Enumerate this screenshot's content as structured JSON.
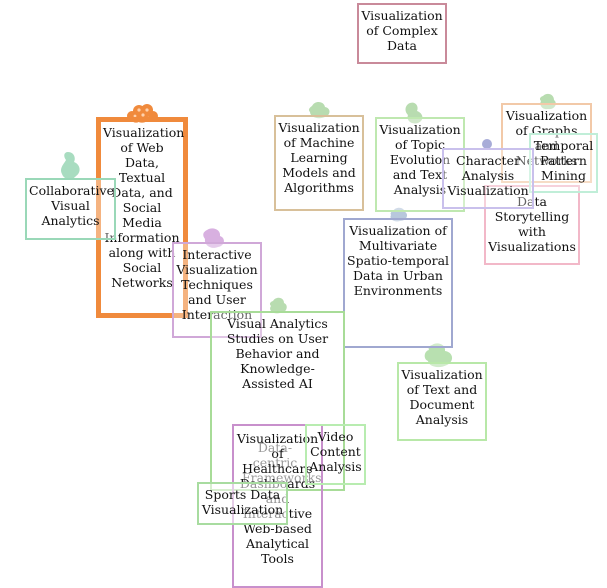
{
  "topics": [
    {
      "id": "complex",
      "label": "Visualization of Complex Data",
      "color": "#c98a9a"
    },
    {
      "id": "web",
      "label": "Visualization of Web Data, Textual Data, and Social Media Information along with Social Networks",
      "color": "#f08a3c",
      "highlighted": true
    },
    {
      "id": "collab",
      "label": "Collaborative Visual Analytics",
      "color": "#9ad8b8"
    },
    {
      "id": "ml",
      "label": "Visualization of Machine Learning Models and Algorithms",
      "color": "#d8c09a"
    },
    {
      "id": "topic",
      "label": "Visualization of Topic Evolution and Text Analysis",
      "color": "#bfe8b0"
    },
    {
      "id": "graphs",
      "label": "Visualization of Graphs and Networks",
      "color": "#f2c9a8"
    },
    {
      "id": "temporal",
      "label": "Temporal Pattern Mining",
      "color": "#c0eed8"
    },
    {
      "id": "character",
      "label": "Character Analysis Visualization",
      "color": "#c9c0ec"
    },
    {
      "id": "story",
      "label": "Data Storytelling with Visualizations",
      "color": "#f2b8c8"
    },
    {
      "id": "interactive",
      "label": "Interactive Visualization Techniques and User Interaction",
      "color": "#d0a8d8"
    },
    {
      "id": "spatio",
      "label": "Visualization of Multivariate Spatio-temporal Data in Urban Environments",
      "color": "#a0a8d0"
    },
    {
      "id": "user",
      "label": "Visual Analytics Studies on User Behavior and Knowledge-Assisted AI",
      "color": "#a8dc98"
    },
    {
      "id": "text",
      "label": "Visualization of Text and Document Analysis",
      "color": "#b8e8a8"
    },
    {
      "id": "healthcare",
      "label": "Visualization of Healthcare Dashboards and Interactive Web-based Analytical Tools",
      "color": "#c890cc"
    },
    {
      "id": "datacentric",
      "label": "Data-centric Frameworks",
      "color": "#c8c8c8",
      "faded": true
    },
    {
      "id": "video",
      "label": "Video Content Analysis",
      "color": "#b8ecb0"
    },
    {
      "id": "sports",
      "label": "Sports Data Visualization",
      "color": "#a8dca0"
    }
  ]
}
